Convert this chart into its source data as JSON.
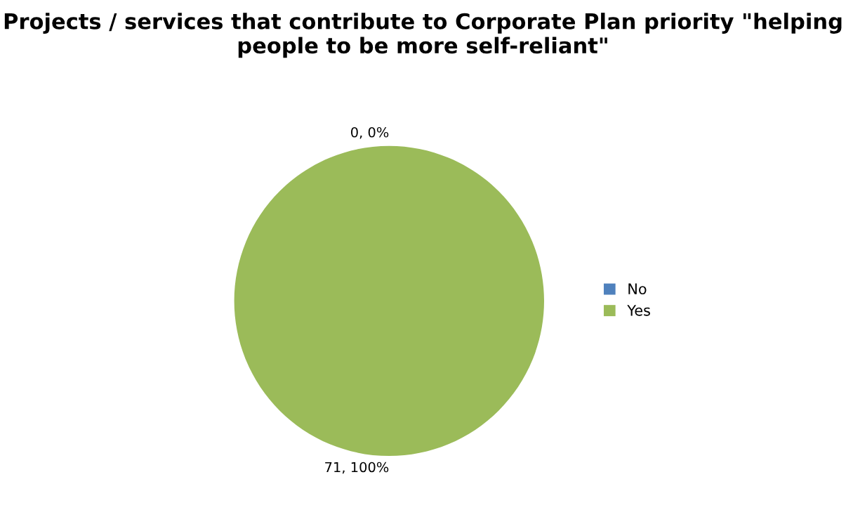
{
  "chart_data": {
    "type": "pie",
    "title": "Projects / services that contribute to Corporate Plan priority \"helping people to be more self-reliant\"",
    "categories": [
      "No",
      "Yes"
    ],
    "values": [
      0,
      71
    ],
    "colors": [
      "#4f81bd",
      "#9bbb59"
    ],
    "value_labels": [
      "0, 0%",
      "71, 100%"
    ],
    "legend": "right"
  }
}
